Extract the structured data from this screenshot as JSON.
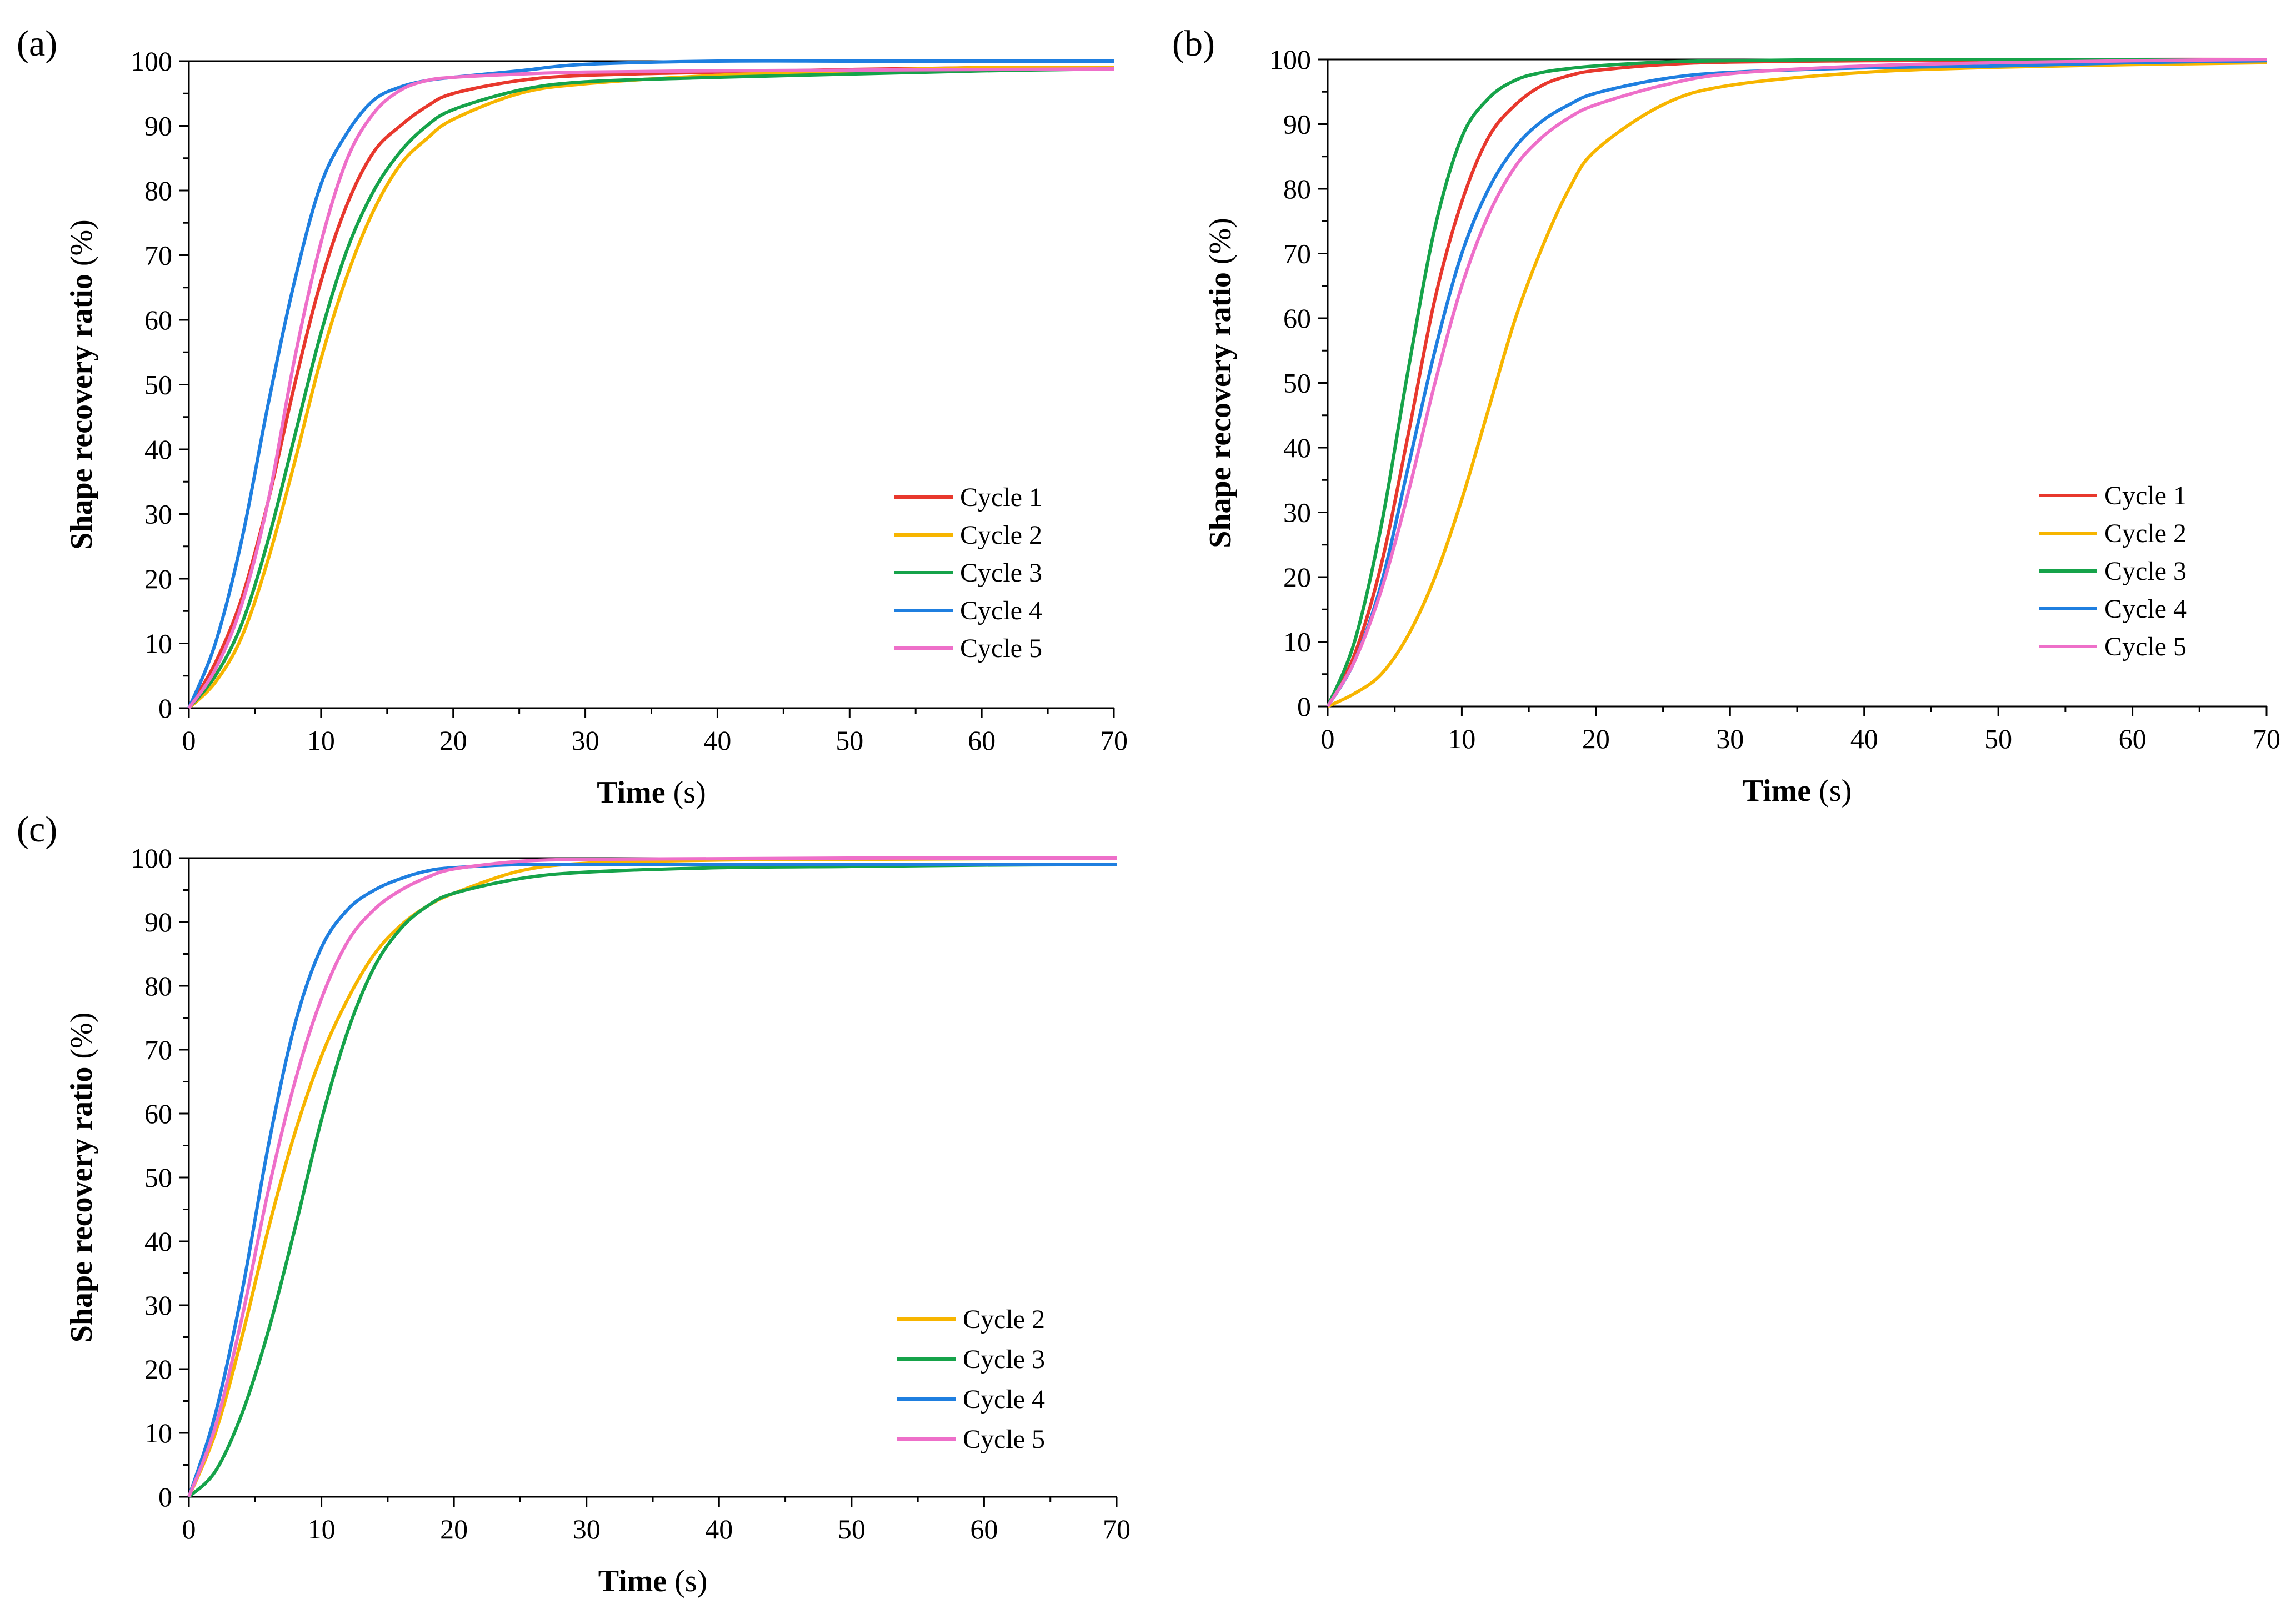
{
  "chart_data": [
    {
      "type": "line",
      "panel_label": "(a)",
      "xlabel": "Time",
      "xlabel_unit": "(s)",
      "ylabel": "Shape recovery ratio",
      "ylabel_unit": "(%)",
      "xlim": [
        0,
        70
      ],
      "ylim": [
        0,
        100
      ],
      "xticks": [
        0,
        10,
        20,
        30,
        40,
        50,
        60,
        70
      ],
      "yticks": [
        0,
        10,
        20,
        30,
        40,
        50,
        60,
        70,
        80,
        90,
        100
      ],
      "x": [
        0,
        2,
        4,
        6,
        8,
        10,
        12,
        14,
        16,
        18,
        20,
        25,
        30,
        40,
        50,
        60,
        70
      ],
      "legend_position": "lower-right",
      "series": [
        {
          "name": "Cycle 1",
          "color": "#e8382d",
          "values": [
            0,
            7,
            17,
            32,
            50,
            66,
            78,
            86,
            90,
            93,
            95,
            97,
            97.8,
            98.3,
            98.7,
            99,
            99
          ]
        },
        {
          "name": "Cycle 2",
          "color": "#f7b500",
          "values": [
            0,
            4,
            11,
            23,
            38,
            54,
            67,
            77,
            84,
            88,
            91,
            95,
            96.5,
            97.8,
            98.5,
            99,
            99
          ]
        },
        {
          "name": "Cycle 3",
          "color": "#16a34a",
          "values": [
            0,
            5,
            13,
            26,
            42,
            58,
            71,
            80,
            86,
            90,
            92.5,
            95.5,
            96.8,
            97.5,
            98,
            98.5,
            98.8
          ]
        },
        {
          "name": "Cycle 4",
          "color": "#1f7fe0",
          "values": [
            0,
            10,
            26,
            47,
            66,
            81,
            89,
            94,
            96,
            97,
            97.5,
            98.5,
            99.5,
            100,
            100,
            100,
            100
          ]
        },
        {
          "name": "Cycle 5",
          "color": "#ee6fc9",
          "values": [
            0,
            6,
            16,
            32,
            54,
            72,
            85,
            92,
            95.5,
            97,
            97.5,
            98,
            98.3,
            98.5,
            98.6,
            98.7,
            98.8
          ]
        }
      ]
    },
    {
      "type": "line",
      "panel_label": "(b)",
      "xlabel": "Time",
      "xlabel_unit": "(s)",
      "ylabel": "Shape recovery ratio",
      "ylabel_unit": "(%)",
      "xlim": [
        0,
        70
      ],
      "ylim": [
        0,
        100
      ],
      "xticks": [
        0,
        10,
        20,
        30,
        40,
        50,
        60,
        70
      ],
      "yticks": [
        0,
        10,
        20,
        30,
        40,
        50,
        60,
        70,
        80,
        90,
        100
      ],
      "x": [
        0,
        2,
        4,
        6,
        8,
        10,
        12,
        14,
        16,
        18,
        20,
        25,
        30,
        40,
        50,
        60,
        70
      ],
      "legend_position": "lower-right",
      "series": [
        {
          "name": "Cycle 1",
          "color": "#e8382d",
          "values": [
            0,
            8,
            22,
            42,
            63,
            78,
            88,
            93,
            96,
            97.5,
            98.3,
            99.2,
            99.6,
            99.8,
            99.9,
            100,
            100
          ]
        },
        {
          "name": "Cycle 2",
          "color": "#f7b500",
          "values": [
            0,
            2,
            5,
            11,
            20,
            32,
            46,
            60,
            71,
            80,
            86,
            93,
            96,
            98,
            98.8,
            99.2,
            99.5
          ]
        },
        {
          "name": "Cycle 3",
          "color": "#16a34a",
          "values": [
            0,
            10,
            28,
            52,
            74,
            88,
            94,
            96.8,
            98,
            98.6,
            99,
            99.6,
            99.8,
            100,
            100,
            100,
            100
          ]
        },
        {
          "name": "Cycle 4",
          "color": "#1f7fe0",
          "values": [
            0,
            7,
            19,
            37,
            55,
            70,
            80,
            86.5,
            90.5,
            93,
            94.8,
            97,
            98,
            98.7,
            99,
            99.5,
            99.8
          ]
        },
        {
          "name": "Cycle 5",
          "color": "#ee6fc9",
          "values": [
            0,
            7,
            18,
            33,
            50,
            65,
            76,
            83.5,
            88,
            91,
            93,
            96,
            97.8,
            99,
            99.5,
            99.8,
            100
          ]
        }
      ]
    },
    {
      "type": "line",
      "panel_label": "(c)",
      "xlabel": "Time",
      "xlabel_unit": "(s)",
      "ylabel": "Shape recovery ratio",
      "ylabel_unit": "(%)",
      "xlim": [
        0,
        70
      ],
      "ylim": [
        0,
        100
      ],
      "xticks": [
        0,
        10,
        20,
        30,
        40,
        50,
        60,
        70
      ],
      "yticks": [
        0,
        10,
        20,
        30,
        40,
        50,
        60,
        70,
        80,
        90,
        100
      ],
      "x": [
        0,
        2,
        4,
        6,
        8,
        10,
        12,
        14,
        16,
        18,
        20,
        25,
        30,
        40,
        50,
        60,
        70
      ],
      "legend_position": "lower-right",
      "series": [
        {
          "name": "Cycle 2",
          "color": "#f7b500",
          "values": [
            0,
            10,
            25,
            42,
            57,
            69,
            78,
            85,
            89.5,
            92.5,
            94.5,
            98,
            99.2,
            99.7,
            99.8,
            99.9,
            100
          ]
        },
        {
          "name": "Cycle 3",
          "color": "#16a34a",
          "values": [
            0,
            4,
            13,
            26,
            42,
            59,
            73,
            83,
            89,
            92.5,
            94.5,
            96.8,
            97.8,
            98.5,
            98.7,
            98.9,
            99
          ]
        },
        {
          "name": "Cycle 4",
          "color": "#1f7fe0",
          "values": [
            0,
            13,
            32,
            55,
            74,
            86,
            92,
            95,
            96.8,
            98,
            98.5,
            99,
            99,
            99,
            99,
            99,
            99
          ]
        },
        {
          "name": "Cycle 5",
          "color": "#ee6fc9",
          "values": [
            0,
            11,
            28,
            48,
            65,
            78,
            87,
            92,
            95,
            97,
            98.3,
            99.5,
            99.8,
            99.9,
            100,
            100,
            100
          ]
        }
      ]
    }
  ]
}
